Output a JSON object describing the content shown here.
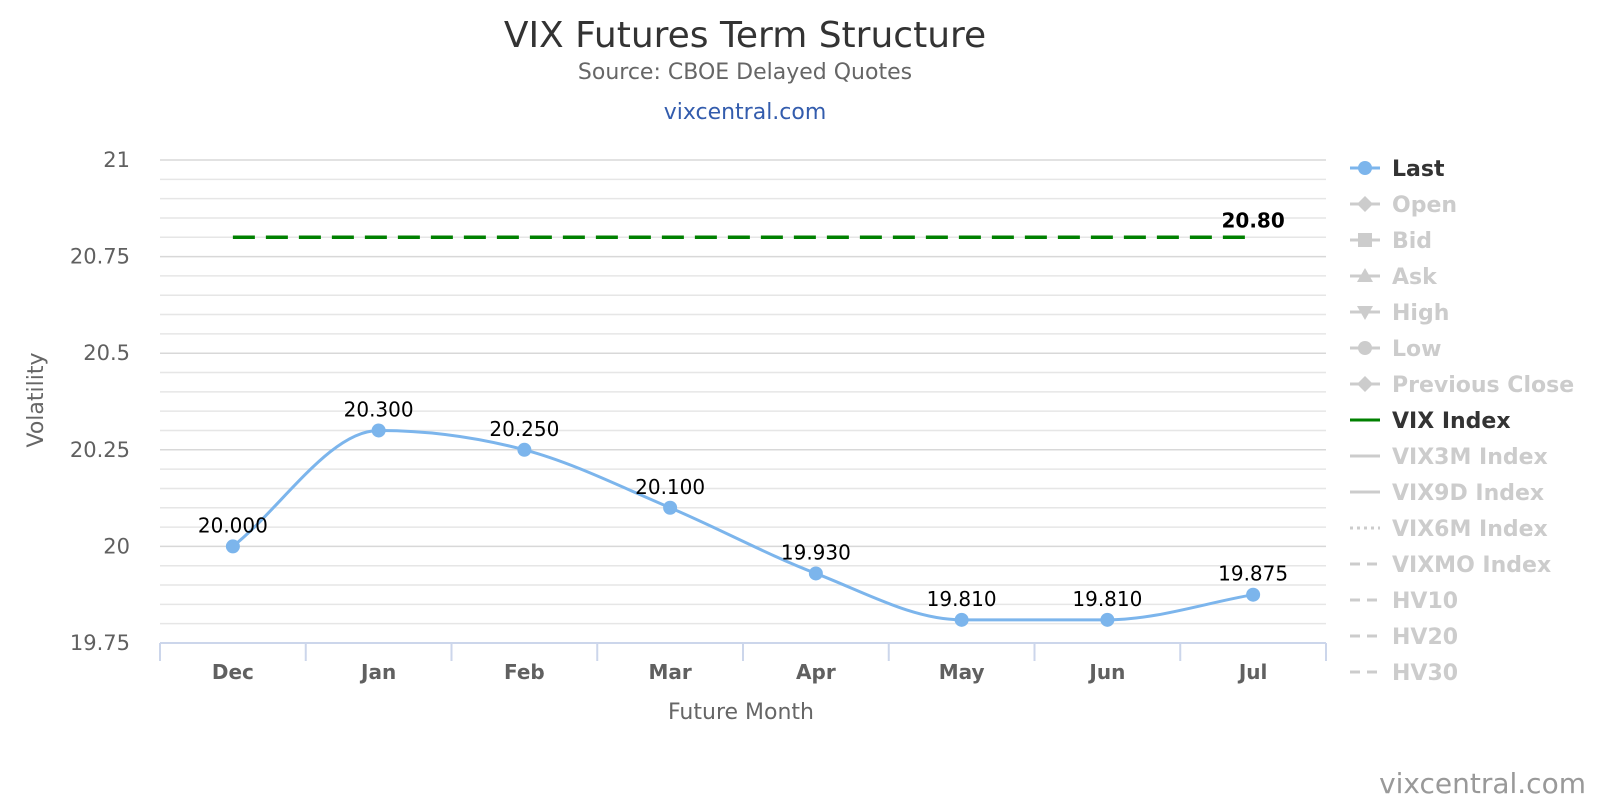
{
  "chart_data": {
    "type": "line",
    "title": "VIX Futures Term Structure",
    "subtitle": "Source: CBOE Delayed Quotes",
    "link_text": "vixcentral.com",
    "credit": "vixcentral.com",
    "xlabel": "Future Month",
    "ylabel": "Volatility",
    "ylim": [
      19.75,
      21
    ],
    "yticks": [
      19.75,
      20,
      20.25,
      20.5,
      20.75,
      21
    ],
    "ytick_labels": [
      "19.75",
      "20",
      "20.25",
      "20.5",
      "20.75",
      "21"
    ],
    "grid": true,
    "legend_position": "right",
    "categories": [
      "Dec",
      "Jan",
      "Feb",
      "Mar",
      "Apr",
      "May",
      "Jun",
      "Jul"
    ],
    "series": [
      {
        "name": "Last",
        "values": [
          20.0,
          20.3,
          20.25,
          20.1,
          19.93,
          19.81,
          19.81,
          19.875
        ],
        "labels": [
          "20.000",
          "20.300",
          "20.250",
          "20.100",
          "19.930",
          "19.810",
          "19.810",
          "19.875"
        ],
        "color": "#7cb5ec"
      },
      {
        "name": "VIX Index",
        "value": 20.8,
        "label": "20.80",
        "color": "#008000",
        "dash": true
      }
    ],
    "legend": [
      {
        "name": "Last",
        "active": true,
        "symbol": "circle-line",
        "color": "#7cb5ec"
      },
      {
        "name": "Open",
        "active": false,
        "symbol": "diamond-line"
      },
      {
        "name": "Bid",
        "active": false,
        "symbol": "square-line"
      },
      {
        "name": "Ask",
        "active": false,
        "symbol": "triangle-line"
      },
      {
        "name": "High",
        "active": false,
        "symbol": "triangle-down-line"
      },
      {
        "name": "Low",
        "active": false,
        "symbol": "circle-line"
      },
      {
        "name": "Previous Close",
        "active": false,
        "symbol": "diamond-line"
      },
      {
        "name": "VIX Index",
        "active": true,
        "symbol": "line",
        "color": "#008000"
      },
      {
        "name": "VIX3M Index",
        "active": false,
        "symbol": "line"
      },
      {
        "name": "VIX9D Index",
        "active": false,
        "symbol": "line"
      },
      {
        "name": "VIX6M Index",
        "active": false,
        "symbol": "dotted-line"
      },
      {
        "name": "VIXMO Index",
        "active": false,
        "symbol": "dashed-line"
      },
      {
        "name": "HV10",
        "active": false,
        "symbol": "dashed-line"
      },
      {
        "name": "HV20",
        "active": false,
        "symbol": "dashed-line"
      },
      {
        "name": "HV30",
        "active": false,
        "symbol": "dashed-line"
      }
    ]
  }
}
